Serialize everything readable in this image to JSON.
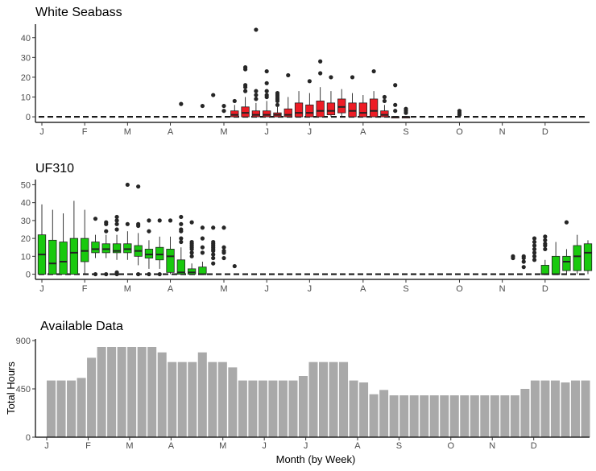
{
  "chart_data": [
    {
      "type": "box",
      "title": "White Seabass",
      "fill": "#ee1c25",
      "xlabel": "",
      "ylabel": "",
      "x_ticks": [
        "J",
        "F",
        "M",
        "A",
        "M",
        "J",
        "J",
        "A",
        "S",
        "O",
        "N",
        "D"
      ],
      "y_ticks": [
        0,
        10,
        20,
        30,
        40
      ],
      "ylim": [
        -2,
        46
      ],
      "x_range": [
        0.5,
        52.5
      ],
      "baseline": 0,
      "boxes": [
        {
          "week": 19,
          "q1": 0,
          "median": 1,
          "q3": 3,
          "lo": 0,
          "hi": 6,
          "outliers": [
            8
          ]
        },
        {
          "week": 20,
          "q1": 0,
          "median": 2,
          "q3": 5,
          "lo": 0,
          "hi": 10,
          "outliers": [
            13,
            15,
            16,
            24,
            25
          ]
        },
        {
          "week": 21,
          "q1": 0,
          "median": 1,
          "q3": 3,
          "lo": 0,
          "hi": 7,
          "outliers": [
            9,
            11,
            13,
            44
          ]
        },
        {
          "week": 22,
          "q1": 0,
          "median": 1,
          "q3": 3,
          "lo": 0,
          "hi": 8,
          "outliers": [
            10,
            11,
            13,
            17,
            23
          ]
        },
        {
          "week": 23,
          "q1": 0,
          "median": 1,
          "q3": 2,
          "lo": 0,
          "hi": 5,
          "outliers": [
            6,
            8,
            9,
            10,
            11,
            12
          ]
        },
        {
          "week": 24,
          "q1": 0,
          "median": 1,
          "q3": 4,
          "lo": 0,
          "hi": 10,
          "outliers": [
            21
          ]
        },
        {
          "week": 25,
          "q1": 0,
          "median": 2,
          "q3": 7,
          "lo": 0,
          "hi": 13,
          "outliers": []
        },
        {
          "week": 26,
          "q1": 0,
          "median": 2,
          "q3": 6,
          "lo": 0,
          "hi": 12,
          "outliers": [
            18
          ]
        },
        {
          "week": 27,
          "q1": 0,
          "median": 3,
          "q3": 8,
          "lo": 0,
          "hi": 15,
          "outliers": [
            22,
            28
          ]
        },
        {
          "week": 28,
          "q1": 1,
          "median": 3,
          "q3": 7,
          "lo": 0,
          "hi": 13,
          "outliers": [
            20
          ]
        },
        {
          "week": 29,
          "q1": 2,
          "median": 5,
          "q3": 9,
          "lo": 0,
          "hi": 14,
          "outliers": []
        },
        {
          "week": 30,
          "q1": 0,
          "median": 3,
          "q3": 7,
          "lo": 0,
          "hi": 12,
          "outliers": [
            20
          ]
        },
        {
          "week": 31,
          "q1": 0,
          "median": 2,
          "q3": 7,
          "lo": 0,
          "hi": 11,
          "outliers": []
        },
        {
          "week": 32,
          "q1": 0,
          "median": 3,
          "q3": 9,
          "lo": 0,
          "hi": 13,
          "outliers": [
            23
          ]
        },
        {
          "week": 33,
          "q1": 0,
          "median": 1,
          "q3": 3,
          "lo": 0,
          "hi": 6,
          "outliers": [
            8,
            10
          ]
        },
        {
          "week": 34,
          "q1": 0,
          "median": 0,
          "q3": 0,
          "lo": 0,
          "hi": 0,
          "outliers": [
            3,
            6,
            16
          ]
        },
        {
          "week": 35,
          "q1": 0,
          "median": 0,
          "q3": 0,
          "lo": 0,
          "hi": 0,
          "outliers": [
            2,
            3,
            4
          ]
        }
      ],
      "extra_points": [
        {
          "week": 14,
          "values": [
            6.5
          ]
        },
        {
          "week": 16,
          "values": [
            5.5
          ]
        },
        {
          "week": 17,
          "values": [
            11
          ]
        },
        {
          "week": 18,
          "values": [
            3,
            5.5
          ]
        },
        {
          "week": 40,
          "values": [
            1,
            2,
            3
          ]
        }
      ]
    },
    {
      "type": "box",
      "title": "UF310",
      "fill": "#19c90e",
      "xlabel": "",
      "ylabel": "",
      "x_ticks": [
        "J",
        "F",
        "M",
        "A",
        "M",
        "J",
        "J",
        "A",
        "S",
        "O",
        "N",
        "D"
      ],
      "y_ticks": [
        0,
        10,
        20,
        30,
        40,
        50
      ],
      "ylim": [
        -2,
        52
      ],
      "x_range": [
        0.5,
        52.5
      ],
      "baseline": 0,
      "boxes": [
        {
          "week": 1,
          "q1": 0,
          "median": 11,
          "q3": 22,
          "lo": 0,
          "hi": 39,
          "outliers": []
        },
        {
          "week": 2,
          "q1": 0,
          "median": 6,
          "q3": 19,
          "lo": 0,
          "hi": 36,
          "outliers": []
        },
        {
          "week": 3,
          "q1": 0,
          "median": 7,
          "q3": 18,
          "lo": 0,
          "hi": 34,
          "outliers": []
        },
        {
          "week": 4,
          "q1": 0,
          "median": 12,
          "q3": 20,
          "lo": 0,
          "hi": 41,
          "outliers": []
        },
        {
          "week": 5,
          "q1": 7,
          "median": 13,
          "q3": 20,
          "lo": 0,
          "hi": 36,
          "outliers": []
        },
        {
          "week": 6,
          "q1": 12,
          "median": 14,
          "q3": 18,
          "lo": 9,
          "hi": 22,
          "outliers": [
            0,
            31
          ]
        },
        {
          "week": 7,
          "q1": 12,
          "median": 14,
          "q3": 17,
          "lo": 9,
          "hi": 22,
          "outliers": [
            0,
            24,
            28,
            29
          ]
        },
        {
          "week": 8,
          "q1": 12,
          "median": 13,
          "q3": 17,
          "lo": 8,
          "hi": 22,
          "outliers": [
            0,
            1,
            25,
            28,
            30,
            32
          ]
        },
        {
          "week": 9,
          "q1": 12,
          "median": 14,
          "q3": 17,
          "lo": 8,
          "hi": 24,
          "outliers": [
            28,
            50
          ]
        },
        {
          "week": 10,
          "q1": 10,
          "median": 13,
          "q3": 16,
          "lo": 5,
          "hi": 23,
          "outliers": [
            0,
            27,
            28,
            49
          ]
        },
        {
          "week": 11,
          "q1": 9,
          "median": 11,
          "q3": 14,
          "lo": 3,
          "hi": 19,
          "outliers": [
            0,
            24,
            30
          ]
        },
        {
          "week": 12,
          "q1": 8,
          "median": 11,
          "q3": 15,
          "lo": 3,
          "hi": 21,
          "outliers": [
            0,
            30
          ]
        },
        {
          "week": 13,
          "q1": 1,
          "median": 10,
          "q3": 14,
          "lo": 0,
          "hi": 21,
          "outliers": [
            30
          ]
        },
        {
          "week": 14,
          "q1": 0,
          "median": 1,
          "q3": 8,
          "lo": 0,
          "hi": 15,
          "outliers": [
            18,
            20,
            24,
            25,
            28,
            32
          ]
        },
        {
          "week": 15,
          "q1": 0,
          "median": 1,
          "q3": 3,
          "lo": 0,
          "hi": 6,
          "outliers": [
            10,
            12,
            14,
            15,
            16,
            17,
            18,
            29
          ]
        },
        {
          "week": 16,
          "q1": 0,
          "median": 0,
          "q3": 4,
          "lo": 0,
          "hi": 7,
          "outliers": [
            12,
            15,
            20,
            26
          ]
        },
        {
          "week": 48,
          "q1": 0,
          "median": 0,
          "q3": 5,
          "lo": 0,
          "hi": 8,
          "outliers": [
            14,
            16,
            17,
            19,
            21
          ]
        },
        {
          "week": 49,
          "q1": 0,
          "median": 0,
          "q3": 10,
          "lo": 0,
          "hi": 18,
          "outliers": []
        },
        {
          "week": 50,
          "q1": 2,
          "median": 7,
          "q3": 10,
          "lo": 0,
          "hi": 14,
          "outliers": [
            29
          ]
        },
        {
          "week": 51,
          "q1": 2,
          "median": 10,
          "q3": 16,
          "lo": 0,
          "hi": 22,
          "outliers": []
        },
        {
          "week": 52,
          "q1": 2,
          "median": 12,
          "q3": 17,
          "lo": 0,
          "hi": 19,
          "outliers": []
        }
      ],
      "extra_points": [
        {
          "week": 17,
          "values": [
            6,
            9,
            11,
            13,
            14,
            15,
            16,
            17,
            18,
            26
          ]
        },
        {
          "week": 18,
          "values": [
            9,
            12,
            13,
            15,
            26
          ]
        },
        {
          "week": 19,
          "values": [
            4.5
          ]
        },
        {
          "week": 45,
          "values": [
            9,
            10
          ]
        },
        {
          "week": 46,
          "values": [
            4,
            7,
            9,
            10
          ]
        },
        {
          "week": 47,
          "values": [
            8,
            10,
            12,
            14,
            16,
            18,
            20
          ]
        }
      ]
    },
    {
      "type": "bar",
      "title": "Available Data",
      "fill": "#a9a9a9",
      "xlabel": "Month (by Week)",
      "ylabel": "Total Hours",
      "x_ticks": [
        "J",
        "F",
        "M",
        "A",
        "M",
        "J",
        "J",
        "A",
        "S",
        "O",
        "N",
        "D"
      ],
      "y_ticks": [
        0,
        450,
        900
      ],
      "ylim": [
        0,
        900
      ],
      "x_range": [
        0.5,
        52.5
      ],
      "values": [
        528,
        528,
        528,
        552,
        740,
        840,
        840,
        840,
        840,
        840,
        840,
        790,
        700,
        700,
        700,
        790,
        700,
        700,
        650,
        528,
        528,
        528,
        528,
        528,
        528,
        570,
        700,
        700,
        700,
        700,
        528,
        510,
        400,
        440,
        390,
        390,
        390,
        390,
        390,
        390,
        390,
        390,
        390,
        390,
        390,
        390,
        390,
        450,
        528,
        528,
        528,
        510,
        528,
        528
      ]
    }
  ]
}
